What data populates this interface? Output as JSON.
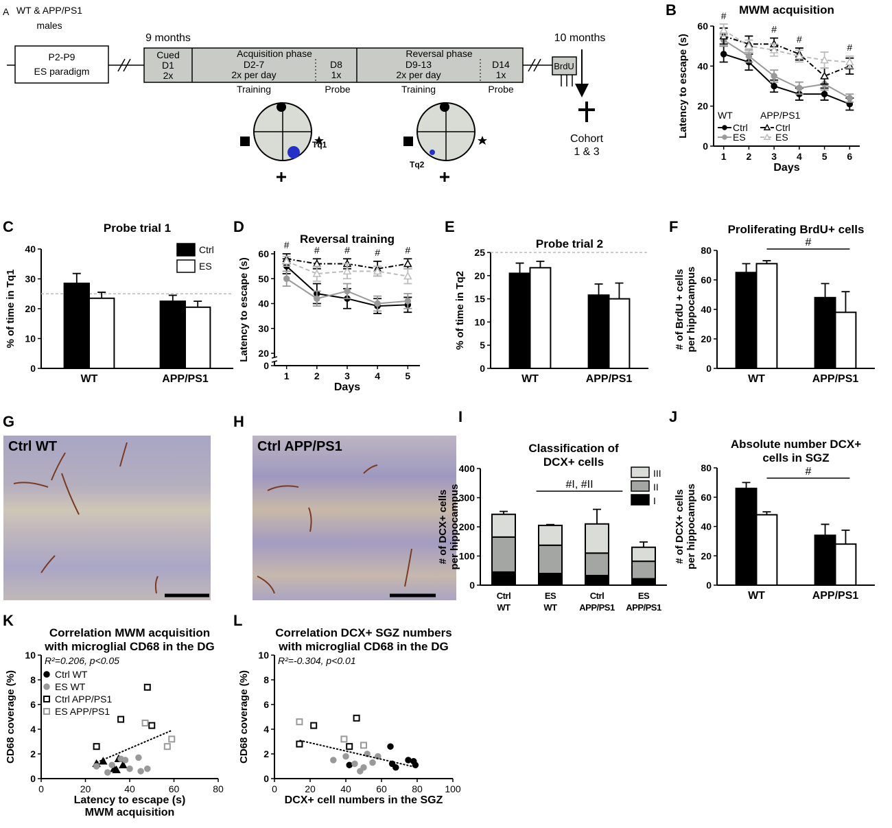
{
  "diagram": {
    "panel": "A",
    "title": [
      "WT & APP/PS1",
      "males"
    ],
    "start_box": [
      "P2-P9",
      "ES paradigm"
    ],
    "age_start": "9 months",
    "age_end": "10 months",
    "cued": [
      "Cued",
      "D1",
      "2x"
    ],
    "acquisition": {
      "name": "Acquisition phase",
      "training": [
        "D2-7",
        "2x per day"
      ],
      "probe": [
        "D8",
        "1x"
      ],
      "training_label": "Training",
      "probe_label": "Probe"
    },
    "reversal": {
      "name": "Reversal phase",
      "training": [
        "D9-13",
        "2x per day"
      ],
      "probe": [
        "D14",
        "1x"
      ],
      "training_label": "Training",
      "probe_label": "Probe"
    },
    "brdu": "BrdU",
    "cohort": [
      "Cohort",
      "1 & 3"
    ],
    "quadrants": [
      "Tq1",
      "Tq2"
    ]
  },
  "micrographs": [
    {
      "panel": "G",
      "label": "Ctrl WT"
    },
    {
      "panel": "H",
      "label": "Ctrl APP/PS1"
    }
  ],
  "chart_data": [
    {
      "panel": "B",
      "type": "line",
      "title": "MWM acquisition",
      "xlabel": "Days",
      "ylabel": "Latency to escape (s)",
      "x": [
        1,
        2,
        3,
        4,
        5,
        6
      ],
      "xlim": [
        0.6,
        6.4
      ],
      "xticks": [
        1,
        2,
        3,
        4,
        5,
        6
      ],
      "ylim": [
        0,
        60
      ],
      "yticks": [
        0,
        20,
        40,
        60
      ],
      "legend": "lower left",
      "legend_groups": [
        "WT",
        "APP/PS1"
      ],
      "sig_label": "#",
      "sig_x": [
        1,
        3,
        4,
        6
      ],
      "series": [
        {
          "name": "Ctrl",
          "group": 0,
          "color": "#000000",
          "fill": "#000000",
          "marker": "circle",
          "dash": "solid",
          "values": [
            46,
            42,
            30,
            26,
            26,
            21
          ],
          "errors": [
            4,
            4,
            3,
            3,
            3,
            3
          ]
        },
        {
          "name": "ES",
          "group": 0,
          "color": "#999999",
          "fill": "#999999",
          "marker": "circle",
          "dash": "solid",
          "values": [
            53,
            45,
            35,
            29,
            31,
            24
          ],
          "errors": [
            3,
            3,
            3,
            3,
            3,
            2
          ]
        },
        {
          "name": "Ctrl",
          "group": 1,
          "color": "#000000",
          "fill": "#ffffff",
          "marker": "triangle",
          "dash": "dashdot",
          "values": [
            55,
            51,
            51,
            46,
            35,
            40
          ],
          "errors": [
            4,
            4,
            3,
            3,
            4,
            4
          ]
        },
        {
          "name": "ES",
          "group": 1,
          "color": "#bbbbbb",
          "fill": "#ffffff",
          "marker": "triangle",
          "dash": "dashed",
          "values": [
            58,
            50,
            48,
            45,
            43,
            42
          ],
          "errors": [
            3,
            3,
            3,
            3,
            4,
            3
          ]
        }
      ]
    },
    {
      "panel": "C",
      "type": "bar",
      "title": "Probe trial 1",
      "ylabel": "% of time in Tq1",
      "categories": [
        "WT",
        "APP/PS1"
      ],
      "ylim": [
        0,
        40
      ],
      "yticks": [
        0,
        10,
        20,
        30,
        40
      ],
      "reference_line": 25,
      "legend": "upper right",
      "series": [
        {
          "name": "Ctrl",
          "color": "#000000",
          "values": [
            28.5,
            22.5
          ],
          "errors": [
            3.3,
            2
          ]
        },
        {
          "name": "ES",
          "color": "#ffffff",
          "values": [
            23.5,
            20.5
          ],
          "errors": [
            2,
            2
          ]
        }
      ]
    },
    {
      "panel": "D",
      "type": "line",
      "title": "Reversal training",
      "xlabel": "Days",
      "ylabel": "Latency to escape (s)",
      "x": [
        1,
        2,
        3,
        4,
        5
      ],
      "xlim": [
        0.6,
        5.4
      ],
      "xticks": [
        1,
        2,
        3,
        4,
        5
      ],
      "ylim": [
        0,
        60
      ],
      "yticks": [
        0,
        20,
        30,
        40,
        50,
        60
      ],
      "ybreak": [
        0,
        20
      ],
      "sig_label": "#",
      "sig_x": [
        1,
        2,
        3,
        4,
        5
      ],
      "series": [
        {
          "name": "WT Ctrl",
          "color": "#000000",
          "fill": "#000000",
          "marker": "circle",
          "dash": "solid",
          "values": [
            55,
            44,
            42,
            39,
            39.5
          ],
          "errors": [
            3,
            4,
            4,
            3,
            3
          ]
        },
        {
          "name": "WT ES",
          "color": "#999999",
          "fill": "#999999",
          "marker": "circle",
          "dash": "solid",
          "values": [
            50,
            42,
            45,
            40,
            41
          ],
          "errors": [
            3,
            3,
            3,
            3,
            3
          ]
        },
        {
          "name": "APP/PS1 Ctrl",
          "color": "#000000",
          "fill": "#ffffff",
          "marker": "triangle",
          "dash": "dashdot",
          "values": [
            58,
            56,
            56,
            54,
            56
          ],
          "errors": [
            2,
            2,
            2,
            3,
            2
          ]
        },
        {
          "name": "APP/PS1 ES",
          "color": "#bbbbbb",
          "fill": "#ffffff",
          "marker": "triangle",
          "dash": "dashed",
          "values": [
            57,
            52,
            53,
            53,
            51
          ],
          "errors": [
            2,
            3,
            3,
            2,
            3
          ]
        }
      ]
    },
    {
      "panel": "E",
      "type": "bar",
      "title": "Probe trial 2",
      "ylabel": "% of time in Tq2",
      "categories": [
        "WT",
        "APP/PS1"
      ],
      "ylim": [
        0,
        25
      ],
      "yticks": [
        0,
        5,
        10,
        15,
        20,
        25
      ],
      "reference_line": 25,
      "series": [
        {
          "name": "Ctrl",
          "color": "#000000",
          "values": [
            20.5,
            15.8
          ],
          "errors": [
            2.2,
            2.4
          ]
        },
        {
          "name": "ES",
          "color": "#ffffff",
          "values": [
            21.7,
            15
          ],
          "errors": [
            1.4,
            3.4
          ]
        }
      ]
    },
    {
      "panel": "F",
      "type": "bar",
      "title": "Proliferating BrdU+ cells",
      "ylabel": [
        "# of BrdU + cells",
        "per hippocampus"
      ],
      "categories": [
        "WT",
        "APP/PS1"
      ],
      "ylim": [
        0,
        80
      ],
      "yticks": [
        0,
        20,
        40,
        60,
        80
      ],
      "annotation": "#",
      "series": [
        {
          "name": "Ctrl",
          "color": "#000000",
          "values": [
            65,
            48
          ],
          "errors": [
            6,
            9.5
          ]
        },
        {
          "name": "ES",
          "color": "#ffffff",
          "values": [
            71,
            38
          ],
          "errors": [
            2,
            14
          ]
        }
      ]
    },
    {
      "panel": "I",
      "type": "bar",
      "stacked": true,
      "title": [
        "Classification of",
        "DCX+ cells"
      ],
      "ylabel": [
        "# of DCX+ cells",
        "per hippocampus"
      ],
      "categories": [
        [
          "Ctrl",
          "WT"
        ],
        [
          "ES",
          "WT"
        ],
        [
          "Ctrl",
          "APP/PS1"
        ],
        [
          "ES",
          "APP/PS1"
        ]
      ],
      "ylim": [
        0,
        400
      ],
      "yticks": [
        0,
        100,
        200,
        300,
        400
      ],
      "annotation": "#I, #II",
      "legend": "upper right",
      "series": [
        {
          "name": "I",
          "color": "#000000",
          "values": [
            45,
            40,
            33,
            22
          ],
          "errors": [
            3,
            3,
            6,
            3
          ]
        },
        {
          "name": "II",
          "color": "#a3a6a2",
          "values": [
            120,
            97,
            77,
            60
          ],
          "errors": [
            8,
            4,
            28,
            20
          ]
        },
        {
          "name": "III",
          "color": "#d9dcd7",
          "values": [
            78,
            68,
            100,
            48
          ],
          "errors": [
            10,
            3,
            50,
            18
          ]
        }
      ]
    },
    {
      "panel": "J",
      "type": "bar",
      "title": [
        "Absolute number DCX+",
        "cells in SGZ"
      ],
      "ylabel": [
        "# of DCX+ cells",
        "per hippocampus"
      ],
      "categories": [
        "WT",
        "APP/PS1"
      ],
      "ylim": [
        0,
        80
      ],
      "yticks": [
        0,
        20,
        40,
        60,
        80
      ],
      "annotation": "#",
      "series": [
        {
          "name": "Ctrl",
          "color": "#000000",
          "values": [
            66,
            34
          ],
          "errors": [
            4,
            7.5
          ]
        },
        {
          "name": "ES",
          "color": "#ffffff",
          "values": [
            48,
            28
          ],
          "errors": [
            2,
            9.5
          ]
        }
      ]
    },
    {
      "panel": "K",
      "type": "scatter",
      "title": [
        "Correlation MWM acquisition",
        "with microglial CD68 in the DG"
      ],
      "stat": "R²=0.206, p<0.05",
      "xlabel": [
        "Latency to escape (s)",
        "MWM acquisition"
      ],
      "ylabel": "CD68 coverage (%)",
      "xlim": [
        0,
        80
      ],
      "xticks": [
        0,
        20,
        40,
        60,
        80
      ],
      "ylim": [
        0,
        10
      ],
      "yticks": [
        0,
        2,
        4,
        6,
        8,
        10
      ],
      "legend": "upper left",
      "trendline": {
        "x": [
          25,
          59
        ],
        "y": [
          1.3,
          3.9
        ]
      },
      "series": [
        {
          "name": "Ctrl WT",
          "color": "#000000",
          "fill": "#000000",
          "marker": "triangle",
          "legend_marker": "circle",
          "x": [
            25,
            28,
            33,
            35,
            34,
            37
          ],
          "values": [
            1.2,
            1.4,
            0.8,
            1.6,
            0.7,
            1.1
          ]
        },
        {
          "name": "ES WT",
          "color": "#999999",
          "fill": "#999999",
          "marker": "circle",
          "x": [
            25,
            30,
            32,
            36,
            38,
            40,
            44,
            45,
            48
          ],
          "values": [
            1.0,
            0.5,
            1.1,
            1.6,
            1.5,
            0.8,
            1.7,
            0.6,
            0.8
          ]
        },
        {
          "name": "Ctrl APP/PS1",
          "color": "#000000",
          "fill": "#ffffff",
          "marker": "square",
          "x": [
            25,
            36,
            48,
            50
          ],
          "values": [
            2.6,
            4.8,
            7.4,
            4.3
          ]
        },
        {
          "name": "ES APP/PS1",
          "color": "#999999",
          "fill": "#ffffff",
          "marker": "square",
          "x": [
            47,
            57,
            59
          ],
          "values": [
            4.5,
            2.6,
            3.2
          ]
        }
      ]
    },
    {
      "panel": "L",
      "type": "scatter",
      "title": [
        "Correlation DCX+ SGZ numbers",
        "with microglial CD68 in the DG"
      ],
      "stat": "R²=-0.304, p<0.01",
      "xlabel": "DCX+ cell numbers in the SGZ",
      "ylabel": "CD68 coverage (%)",
      "xlim": [
        0,
        100
      ],
      "xticks": [
        0,
        20,
        40,
        60,
        80,
        100
      ],
      "ylim": [
        0,
        10
      ],
      "yticks": [
        0,
        2,
        4,
        6,
        8,
        10
      ],
      "trendline": {
        "x": [
          14,
          80
        ],
        "y": [
          3.1,
          0.9
        ]
      },
      "series": [
        {
          "name": "Ctrl WT",
          "color": "#000000",
          "fill": "#000000",
          "marker": "circle",
          "x": [
            42,
            65,
            66,
            68,
            75,
            78,
            79
          ],
          "values": [
            1.1,
            2.6,
            1.2,
            0.9,
            1.5,
            1.4,
            1.1
          ]
        },
        {
          "name": "ES WT",
          "color": "#999999",
          "fill": "#999999",
          "marker": "circle",
          "x": [
            33,
            40,
            45,
            48,
            50,
            52,
            55,
            58
          ],
          "values": [
            1.5,
            1.8,
            1.2,
            0.6,
            0.9,
            2.0,
            1.3,
            1.8
          ]
        },
        {
          "name": "Ctrl APP/PS1",
          "color": "#000000",
          "fill": "#ffffff",
          "marker": "square",
          "x": [
            14,
            22,
            42,
            46
          ],
          "values": [
            2.8,
            4.3,
            2.6,
            4.9
          ]
        },
        {
          "name": "ES APP/PS1",
          "color": "#999999",
          "fill": "#ffffff",
          "marker": "square",
          "x": [
            14,
            39,
            50
          ],
          "values": [
            4.6,
            3.2,
            2.7
          ]
        }
      ]
    }
  ]
}
